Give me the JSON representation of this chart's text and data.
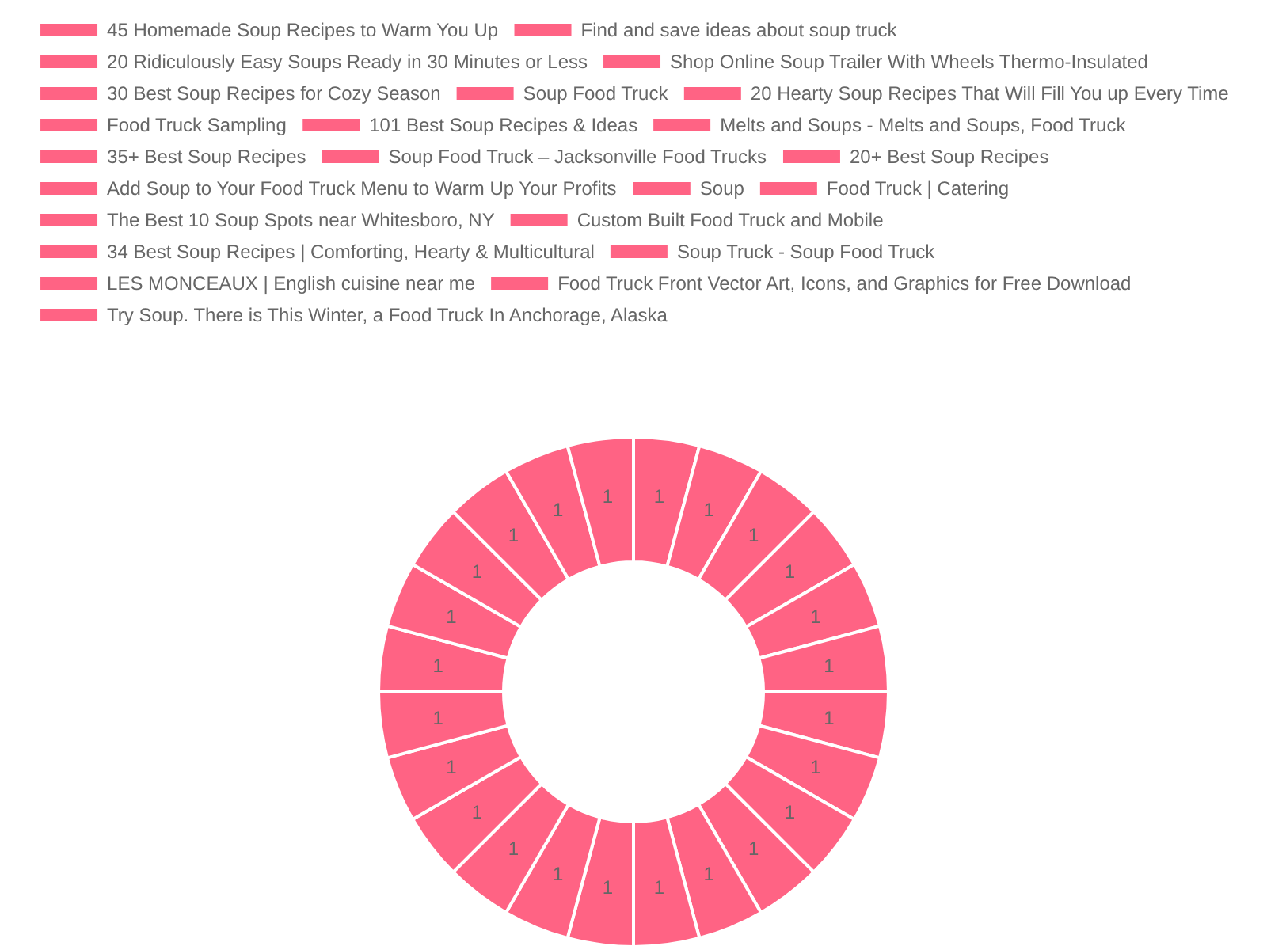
{
  "chart_data": {
    "type": "donut",
    "categories": [
      "45 Homemade Soup Recipes to Warm You Up",
      "Find and save ideas about soup truck",
      "20 Ridiculously Easy Soups Ready in 30 Minutes or Less",
      "Shop Online Soup Trailer With Wheels Thermo-Insulated",
      "30 Best Soup Recipes for Cozy Season",
      "Soup Food Truck",
      "20 Hearty Soup Recipes That Will Fill You up Every Time",
      "Food Truck Sampling",
      "101 Best Soup Recipes & Ideas",
      "Melts and Soups - Melts and Soups, Food Truck",
      "35+ Best Soup Recipes",
      "Soup Food Truck – Jacksonville Food Trucks",
      "20+ Best Soup Recipes",
      "Add Soup to Your Food Truck Menu to Warm Up Your Profits",
      "Soup",
      "Food Truck | Catering",
      "The Best 10 Soup Spots near Whitesboro, NY",
      "Custom Built Food Truck and Mobile",
      "34 Best Soup Recipes | Comforting, Hearty & Multicultural",
      "Soup Truck - Soup Food Truck",
      null,
      "LES MONCEAUX | English cuisine near me",
      "Food Truck Front Vector Art, Icons, and Graphics for Free Download",
      "Try Soup. There is This Winter, a Food Truck In Anchorage, Alaska"
    ],
    "values": [
      1,
      1,
      1,
      1,
      1,
      1,
      1,
      1,
      1,
      1,
      1,
      1,
      1,
      1,
      1,
      1,
      1,
      1,
      1,
      1,
      1,
      1,
      1,
      1
    ],
    "colors": [
      "#ff6384",
      "#ff6384",
      "#ff6384",
      "#ff6384",
      "#ff6384",
      "#ff6384",
      "#ff6384",
      "#ff6384",
      "#ff6384",
      "#ff6384",
      "#ff6384",
      "#ff6384",
      "#ff6384",
      "#ff6384",
      "#ff6384",
      "#ff6384",
      "#ff6384",
      "#ff6384",
      "#ff6384",
      "#ff6384",
      "#ff6384",
      "#ff6384",
      "#ff6384",
      "#ff6384"
    ],
    "data_labels": true,
    "legend": "top"
  }
}
